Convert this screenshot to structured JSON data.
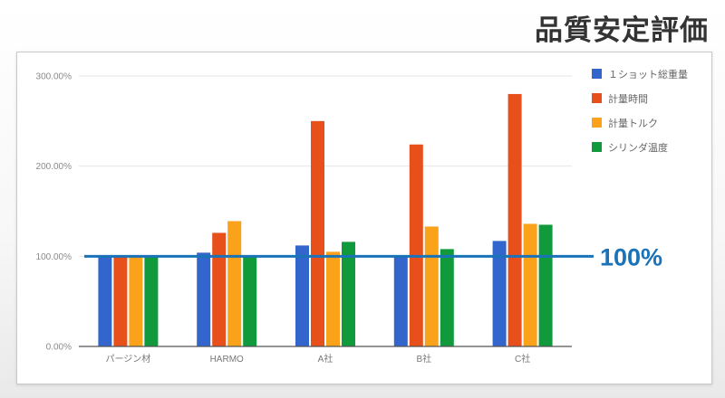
{
  "slide": {
    "title": "品質安定評価"
  },
  "reference": {
    "label": "100%",
    "value": 100,
    "color": "#1a73b8"
  },
  "colors": {
    "series": [
      "#3366cc",
      "#e8501b",
      "#f9a21a",
      "#109a3c"
    ],
    "grid": "#e6e6e6",
    "axis": "#555555"
  },
  "chart_data": {
    "type": "bar",
    "title": "",
    "xlabel": "",
    "ylabel": "",
    "ylim": [
      0,
      300
    ],
    "yticks": [
      0,
      100,
      200,
      300
    ],
    "ytick_labels": [
      "0.00%",
      "100.00%",
      "200.00%",
      "300.00%"
    ],
    "categories": [
      "パージン材",
      "HARMO",
      "A社",
      "B社",
      "C社"
    ],
    "series": [
      {
        "name": "１ショット総重量",
        "values": [
          100,
          104,
          112,
          100,
          117
        ]
      },
      {
        "name": "計量時間",
        "values": [
          100,
          126,
          250,
          224,
          280
        ]
      },
      {
        "name": "計量トルク",
        "values": [
          100,
          139,
          105,
          133,
          136
        ]
      },
      {
        "name": "シリンダ温度",
        "values": [
          100,
          100,
          116,
          108,
          135
        ]
      }
    ],
    "grid": true,
    "legend": "right"
  }
}
